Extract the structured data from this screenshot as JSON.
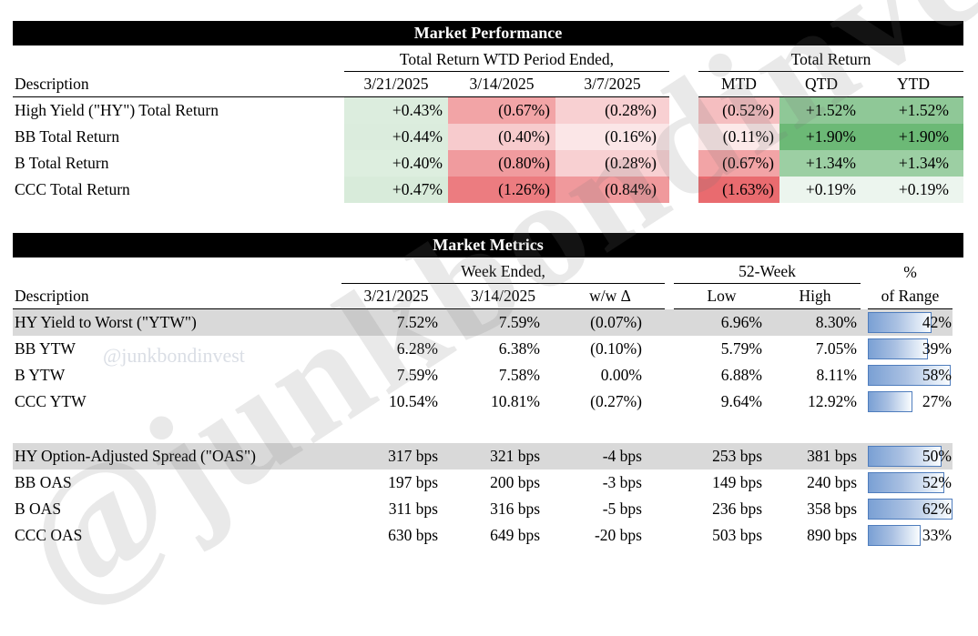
{
  "watermark": {
    "small": "@junkbondinvest",
    "big": "@junkbondinvest"
  },
  "performance": {
    "title": "Market Performance",
    "group1": "Total Return WTD Period Ended,",
    "group2": "Total Return",
    "desc_header": "Description",
    "columns": [
      "3/21/2025",
      "3/14/2025",
      "3/7/2025",
      "MTD",
      "QTD",
      "YTD"
    ],
    "rows": [
      {
        "label": "High Yield (\"HY\") Total Return",
        "values": [
          "+0.43%",
          "(0.67%)",
          "(0.28%)",
          "(0.52%)",
          "+1.52%",
          "+1.52%"
        ],
        "colors": [
          "#dcedde",
          "#f2a4a6",
          "#f8d0d2",
          "#f5bec0",
          "#8fc897",
          "#8fc897"
        ]
      },
      {
        "label": "BB Total Return",
        "values": [
          "+0.44%",
          "(0.40%)",
          "(0.16%)",
          "(0.11%)",
          "+1.90%",
          "+1.90%"
        ],
        "colors": [
          "#dbecdd",
          "#f7cbcd",
          "#fbe6e7",
          "#fce9e9",
          "#6cb976",
          "#6cb976"
        ]
      },
      {
        "label": "B Total Return",
        "values": [
          "+0.40%",
          "(0.80%)",
          "(0.28%)",
          "(0.67%)",
          "+1.34%",
          "+1.34%"
        ],
        "colors": [
          "#ddeedf",
          "#f09b9e",
          "#f8d0d2",
          "#f2a4a6",
          "#9ccfa3",
          "#9ccfa3"
        ]
      },
      {
        "label": "CCC Total Return",
        "values": [
          "+0.47%",
          "(1.26%)",
          "(0.84%)",
          "(1.63%)",
          "+0.19%",
          "+0.19%"
        ],
        "colors": [
          "#d8ebda",
          "#ec7c80",
          "#f0999c",
          "#e96b6f",
          "#ecf5ee",
          "#ecf5ee"
        ]
      }
    ]
  },
  "metrics": {
    "title": "Market Metrics",
    "group1": "Week Ended,",
    "group2": "52-Week",
    "group3_line1": "%",
    "group3_line2": "of Range",
    "desc_header": "Description",
    "columns": [
      "3/21/2025",
      "3/14/2025",
      "w/w Δ",
      "Low",
      "High"
    ],
    "rows": [
      {
        "label": "HY Yield to Worst (\"YTW\")",
        "values": [
          "7.52%",
          "7.59%",
          "(0.07%)",
          "6.96%",
          "8.30%"
        ],
        "range": "42%",
        "bar_pct": 75,
        "highlight": true
      },
      {
        "label": "BB YTW",
        "values": [
          "6.28%",
          "6.38%",
          "(0.10%)",
          "5.79%",
          "7.05%"
        ],
        "range": "39%",
        "bar_pct": 71,
        "highlight": false
      },
      {
        "label": "B YTW",
        "values": [
          "7.59%",
          "7.58%",
          "0.00%",
          "6.88%",
          "8.11%"
        ],
        "range": "58%",
        "bar_pct": 98,
        "highlight": false
      },
      {
        "label": "CCC YTW",
        "values": [
          "10.54%",
          "10.81%",
          "(0.27%)",
          "9.64%",
          "12.92%"
        ],
        "range": "27%",
        "bar_pct": 53,
        "highlight": false
      },
      {
        "spacer": true
      },
      {
        "label": "HY Option-Adjusted Spread (\"OAS\")",
        "values": [
          "317 bps",
          "321 bps",
          "-4 bps",
          "253 bps",
          "381 bps"
        ],
        "range": "50%",
        "bar_pct": 87,
        "highlight": true
      },
      {
        "label": "BB OAS",
        "values": [
          "197 bps",
          "200 bps",
          "-3 bps",
          "149 bps",
          "240 bps"
        ],
        "range": "52%",
        "bar_pct": 90,
        "highlight": false
      },
      {
        "label": "B OAS",
        "values": [
          "311 bps",
          "316 bps",
          "-5 bps",
          "236 bps",
          "358 bps"
        ],
        "range": "62%",
        "bar_pct": 100,
        "highlight": false
      },
      {
        "label": "CCC OAS",
        "values": [
          "630 bps",
          "649 bps",
          "-20 bps",
          "503 bps",
          "890 bps"
        ],
        "range": "33%",
        "bar_pct": 62,
        "highlight": false
      }
    ]
  },
  "colors": {
    "header_bar": "#000000",
    "header_text": "#ffffff",
    "highlight_row": "#d9d9d9",
    "bar_border": "#4f7dbd",
    "bar_fill_left": "#7aa0d4",
    "positive_green_dark": "#6cb976",
    "negative_red_dark": "#e96b6f"
  }
}
